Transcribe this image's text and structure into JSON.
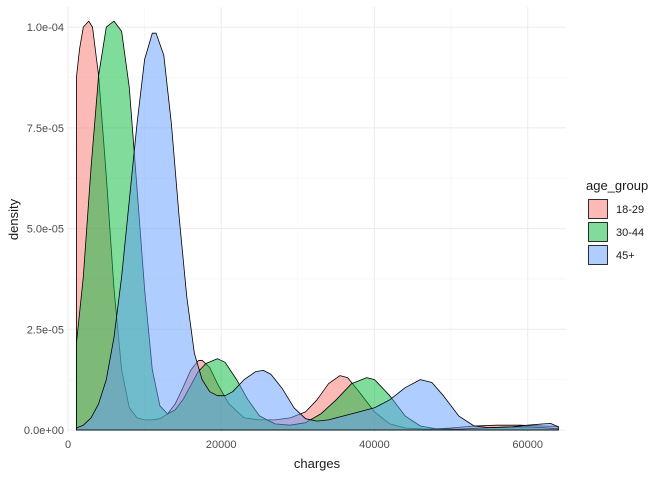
{
  "chart_data": {
    "type": "area",
    "xlabel": "charges",
    "ylabel": "density",
    "xlim": [
      0,
      65000
    ],
    "ylim": [
      -5e-07,
      0.000105
    ],
    "x_ticks": [
      0,
      20000,
      40000,
      60000
    ],
    "x_tick_labels": [
      "0",
      "20000",
      "40000",
      "60000"
    ],
    "y_ticks": [
      0,
      2.5e-05,
      5e-05,
      7.5e-05,
      0.0001
    ],
    "y_tick_labels": [
      "0.0e+00",
      "2.5e-05",
      "5.0e-05",
      "7.5e-05",
      "1.0e-04"
    ],
    "grid": true,
    "legend": {
      "title": "age_group",
      "position": "right"
    },
    "series": [
      {
        "name": "18-29",
        "color": "#F8766D",
        "points": [
          [
            1100,
            8.75e-05
          ],
          [
            1500,
            9.45e-05
          ],
          [
            2000,
            0.0001
          ],
          [
            2700,
            0.0001015
          ],
          [
            3200,
            0.0001
          ],
          [
            4000,
            8.8e-05
          ],
          [
            5000,
            6.3e-05
          ],
          [
            6000,
            3.5e-05
          ],
          [
            7000,
            1.5e-05
          ],
          [
            8000,
            5.5e-06
          ],
          [
            9000,
            3e-06
          ],
          [
            10000,
            2.5e-06
          ],
          [
            11000,
            2.5e-06
          ],
          [
            12000,
            2.8e-06
          ],
          [
            13000,
            4e-06
          ],
          [
            14000,
            6.5e-06
          ],
          [
            15000,
            1.05e-05
          ],
          [
            16000,
            1.48e-05
          ],
          [
            17000,
            1.72e-05
          ],
          [
            17500,
            1.73e-05
          ],
          [
            18500,
            1.55e-05
          ],
          [
            19500,
            1.15e-05
          ],
          [
            21000,
            6.5e-06
          ],
          [
            23000,
            3e-06
          ],
          [
            25000,
            2.5e-06
          ],
          [
            27000,
            2.5e-06
          ],
          [
            29000,
            3e-06
          ],
          [
            31000,
            4.5e-06
          ],
          [
            32500,
            7.5e-06
          ],
          [
            34000,
            1.15e-05
          ],
          [
            35500,
            1.35e-05
          ],
          [
            36500,
            1.3e-05
          ],
          [
            38000,
            9.5e-06
          ],
          [
            40000,
            4.5e-06
          ],
          [
            42000,
            1.5e-06
          ],
          [
            44000,
            5e-07
          ],
          [
            47000,
            2e-07
          ],
          [
            50000,
            5e-07
          ],
          [
            53000,
            1e-06
          ],
          [
            56000,
            1.2e-06
          ],
          [
            59000,
            1.2e-06
          ],
          [
            62000,
            1e-06
          ],
          [
            64000,
            9e-07
          ]
        ]
      },
      {
        "name": "30-44",
        "color": "#00BA38",
        "points": [
          [
            1100,
            2.15e-05
          ],
          [
            2000,
            3.8e-05
          ],
          [
            3000,
            6.5e-05
          ],
          [
            4000,
            8.8e-05
          ],
          [
            5000,
            0.0001
          ],
          [
            6000,
            0.0001015
          ],
          [
            7000,
            9.9e-05
          ],
          [
            8000,
            8.5e-05
          ],
          [
            9000,
            6e-05
          ],
          [
            10000,
            3.5e-05
          ],
          [
            11000,
            1.5e-05
          ],
          [
            12000,
            6e-06
          ],
          [
            13000,
            4e-06
          ],
          [
            14000,
            5e-06
          ],
          [
            15000,
            7.5e-06
          ],
          [
            16000,
            1.1e-05
          ],
          [
            17000,
            1.45e-05
          ],
          [
            18000,
            1.65e-05
          ],
          [
            19500,
            1.77e-05
          ],
          [
            20500,
            1.68e-05
          ],
          [
            22000,
            1.25e-05
          ],
          [
            23500,
            7.5e-06
          ],
          [
            25000,
            3.5e-06
          ],
          [
            27000,
            1.5e-06
          ],
          [
            29000,
            1.2e-06
          ],
          [
            31000,
            1.8e-06
          ],
          [
            33000,
            4e-06
          ],
          [
            35000,
            7.5e-06
          ],
          [
            37000,
            1.15e-05
          ],
          [
            39000,
            1.3e-05
          ],
          [
            40000,
            1.25e-05
          ],
          [
            42000,
            8.5e-06
          ],
          [
            44000,
            3.5e-06
          ],
          [
            46000,
            1e-06
          ],
          [
            48000,
            3e-07
          ],
          [
            51000,
            2e-07
          ],
          [
            54000,
            5e-07
          ],
          [
            57000,
            7e-07
          ],
          [
            60000,
            8e-07
          ],
          [
            62000,
            6e-07
          ],
          [
            64000,
            3e-07
          ]
        ]
      },
      {
        "name": "45+",
        "color": "#619CFF",
        "points": [
          [
            1100,
            5e-07
          ],
          [
            2000,
            1.2e-06
          ],
          [
            3000,
            3e-06
          ],
          [
            4000,
            6.5e-06
          ],
          [
            5000,
            1.25e-05
          ],
          [
            6000,
            2.3e-05
          ],
          [
            7000,
            3.8e-05
          ],
          [
            8000,
            5.7e-05
          ],
          [
            9000,
            7.6e-05
          ],
          [
            10000,
            9.2e-05
          ],
          [
            11000,
            9.85e-05
          ],
          [
            11500,
            9.85e-05
          ],
          [
            12500,
            9.3e-05
          ],
          [
            13500,
            7.6e-05
          ],
          [
            14500,
            5.3e-05
          ],
          [
            15500,
            3.3e-05
          ],
          [
            16500,
            1.9e-05
          ],
          [
            17500,
            1.25e-05
          ],
          [
            18500,
            9.5e-06
          ],
          [
            19500,
            8.5e-06
          ],
          [
            20500,
            8.5e-06
          ],
          [
            21500,
            9.5e-06
          ],
          [
            23000,
            1.25e-05
          ],
          [
            24500,
            1.45e-05
          ],
          [
            25500,
            1.48e-05
          ],
          [
            26500,
            1.38e-05
          ],
          [
            28000,
            1.02e-05
          ],
          [
            29500,
            5.5e-06
          ],
          [
            31000,
            2.8e-06
          ],
          [
            32500,
            2.2e-06
          ],
          [
            34000,
            2.5e-06
          ],
          [
            36000,
            3.5e-06
          ],
          [
            38000,
            4.5e-06
          ],
          [
            40000,
            5.5e-06
          ],
          [
            42000,
            7.5e-06
          ],
          [
            44000,
            1.05e-05
          ],
          [
            46000,
            1.25e-05
          ],
          [
            47500,
            1.18e-05
          ],
          [
            49000,
            8.5e-06
          ],
          [
            51000,
            3.5e-06
          ],
          [
            53000,
            1e-06
          ],
          [
            55000,
            6e-07
          ],
          [
            58000,
            8e-07
          ],
          [
            60000,
            1.2e-06
          ],
          [
            62000,
            1.5e-06
          ],
          [
            63000,
            1.6e-06
          ],
          [
            64000,
            8e-07
          ]
        ]
      }
    ]
  }
}
